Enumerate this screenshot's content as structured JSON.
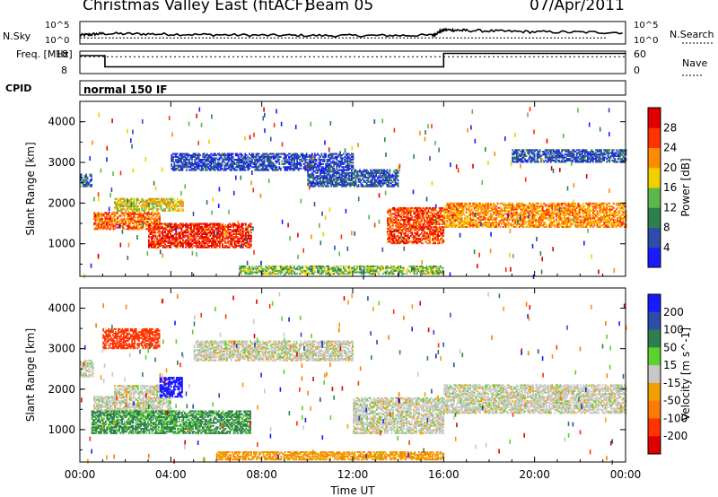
{
  "header": {
    "title": "Christmas Valley East (fitACF)",
    "beam": "Beam 05",
    "date": "07/Apr/2011"
  },
  "colors": {
    "power_scale": [
      "#1a1aff",
      "#2d4ea8",
      "#2e7f4e",
      "#5cb84a",
      "#f0d000",
      "#ff8c00",
      "#ff3300",
      "#e00000"
    ],
    "velocity_scale": [
      "#1a1aff",
      "#2d4ea8",
      "#2e7f4e",
      "#5cd22c",
      "#c8c8c8",
      "#f0a000",
      "#ff7a00",
      "#ff3300",
      "#e00000"
    ],
    "axis": "#000000"
  },
  "chart_data": [
    {
      "type": "line",
      "panel": "noise",
      "ylabel_left": "N.Sky",
      "ylabel_right": "N.Search",
      "left_ticks": [
        "10^5",
        "10^0"
      ],
      "right_ticks": [
        "10^5",
        "10^0"
      ],
      "series": [
        {
          "name": "N.Sky",
          "x": [
            0,
            1,
            4,
            8,
            12,
            15.5,
            16,
            17,
            20,
            24
          ],
          "y": [
            1.6,
            2.1,
            1.9,
            1.6,
            1.5,
            1.6,
            3.2,
            3.0,
            2.6,
            2.4
          ]
        },
        {
          "name": "N.Search",
          "x": [
            0,
            24
          ],
          "y": [
            1.0,
            1.0
          ]
        }
      ]
    },
    {
      "type": "line",
      "panel": "frequency",
      "ylabel_left": "Freq. [MHz]",
      "ylabel_right": "Nave",
      "left_ticks": [
        "18",
        "8"
      ],
      "right_ticks": [
        "60",
        "0"
      ],
      "series": [
        {
          "name": "Freq",
          "x": [
            0,
            1.1,
            1.1,
            16,
            16,
            24
          ],
          "y": [
            16.0,
            16.0,
            11.0,
            11.0,
            17.0,
            17.0
          ]
        },
        {
          "name": "Nave",
          "x": [
            0,
            24
          ],
          "y": [
            40,
            40
          ]
        }
      ]
    },
    {
      "type": "table",
      "panel": "cpid",
      "label": "CPID",
      "value": "normal 150 IF"
    },
    {
      "type": "heatmap",
      "panel": "power",
      "ylabel": "Slant Range [km]",
      "xlim": [
        0,
        24
      ],
      "ylim": [
        200,
        4500
      ],
      "yticks": [
        1000,
        2000,
        3000,
        4000
      ],
      "colorbar": {
        "label": "Power [dB]",
        "ticks": [
          "4",
          "8",
          "12",
          "16",
          "20",
          "24",
          "28"
        ],
        "range": [
          0,
          30
        ]
      },
      "regions": [
        {
          "t0": 0.0,
          "t1": 0.5,
          "r0": 2400,
          "r1": 2700,
          "level": 8
        },
        {
          "t0": 0.6,
          "t1": 3.5,
          "r0": 1350,
          "r1": 1750,
          "level": 24
        },
        {
          "t0": 3.0,
          "t1": 7.5,
          "r0": 900,
          "r1": 1500,
          "level": 28
        },
        {
          "t0": 1.5,
          "t1": 4.5,
          "r0": 1800,
          "r1": 2100,
          "level": 18
        },
        {
          "t0": 4.0,
          "t1": 12.0,
          "r0": 2800,
          "r1": 3200,
          "level": 5
        },
        {
          "t0": 10.0,
          "t1": 14.0,
          "r0": 2400,
          "r1": 2800,
          "level": 6
        },
        {
          "t0": 13.5,
          "t1": 16.0,
          "r0": 1000,
          "r1": 1900,
          "level": 26
        },
        {
          "t0": 16.0,
          "t1": 24.0,
          "r0": 1400,
          "r1": 2000,
          "level": 22
        },
        {
          "t0": 19.0,
          "t1": 24.0,
          "r0": 3000,
          "r1": 3300,
          "level": 6
        },
        {
          "t0": 7.0,
          "t1": 16.0,
          "r0": 250,
          "r1": 450,
          "level": 14
        }
      ]
    },
    {
      "type": "heatmap",
      "panel": "velocity",
      "ylabel": "Slant Range [km]",
      "xlabel": "Time UT",
      "xlim": [
        0,
        24
      ],
      "ylim": [
        200,
        4500
      ],
      "yticks": [
        1000,
        2000,
        3000,
        4000
      ],
      "xticks": [
        "00:00",
        "04:00",
        "08:00",
        "12:00",
        "16:00",
        "20:00",
        "00:00"
      ],
      "colorbar": {
        "label": "Velocity [m s^-1]",
        "ticks": [
          "200",
          "100",
          "50",
          "15",
          "-15",
          "-50",
          "-100",
          "-200"
        ],
        "range": [
          -250,
          250
        ]
      },
      "regions": [
        {
          "t0": 0.0,
          "t1": 0.6,
          "r0": 2300,
          "r1": 2700,
          "level": 0
        },
        {
          "t0": 0.6,
          "t1": 4.0,
          "r0": 1400,
          "r1": 1800,
          "level": 0
        },
        {
          "t0": 1.5,
          "t1": 4.0,
          "r0": 1850,
          "r1": 2100,
          "level": 0
        },
        {
          "t0": 0.5,
          "t1": 7.5,
          "r0": 900,
          "r1": 1450,
          "level": 40
        },
        {
          "t0": 3.5,
          "t1": 4.5,
          "r0": 1800,
          "r1": 2300,
          "level": 180
        },
        {
          "t0": 5.0,
          "t1": 12.0,
          "r0": 2700,
          "r1": 3200,
          "level": 0
        },
        {
          "t0": 12.0,
          "t1": 16.0,
          "r0": 900,
          "r1": 1800,
          "level": 0
        },
        {
          "t0": 16.0,
          "t1": 24.0,
          "r0": 1400,
          "r1": 2100,
          "level": 0
        },
        {
          "t0": 6.0,
          "t1": 16.0,
          "r0": 250,
          "r1": 450,
          "level": -40
        },
        {
          "t0": 1.0,
          "t1": 3.5,
          "r0": 3000,
          "r1": 3500,
          "level": -150
        }
      ]
    }
  ]
}
